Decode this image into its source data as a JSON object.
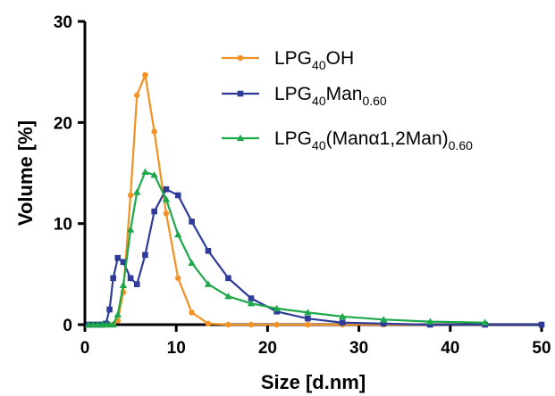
{
  "chart_data": {
    "type": "line",
    "title": "",
    "xlabel": "Size [d.nm]",
    "ylabel": "Volume [%]",
    "xlim": [
      0,
      50
    ],
    "ylim": [
      0,
      30
    ],
    "x_ticks": [
      0,
      10,
      20,
      30,
      40,
      50
    ],
    "y_ticks": [
      0,
      10,
      20,
      30
    ],
    "x_tick_labels": [
      "0",
      "10",
      "20",
      "30",
      "40",
      "50"
    ],
    "y_tick_labels": [
      "0",
      "10",
      "20",
      "30"
    ],
    "grid": false,
    "legend_position": "top-right",
    "series": [
      {
        "name": "LPG40OH",
        "legend_parts": [
          {
            "text": "LPG",
            "sub": false
          },
          {
            "text": "40",
            "sub": true
          },
          {
            "text": "OH",
            "sub": false
          }
        ],
        "color": "#F39223",
        "marker": "circle",
        "points": [
          [
            0.4,
            0
          ],
          [
            0.9,
            0
          ],
          [
            1.4,
            0
          ],
          [
            1.9,
            0
          ],
          [
            2.3,
            0
          ],
          [
            2.7,
            0
          ],
          [
            3.1,
            0
          ],
          [
            3.6,
            0.4
          ],
          [
            4.2,
            3.2
          ],
          [
            5.0,
            12.8
          ],
          [
            5.7,
            22.7
          ],
          [
            6.6,
            24.7
          ],
          [
            7.6,
            19.1
          ],
          [
            8.9,
            11.0
          ],
          [
            10.2,
            4.6
          ],
          [
            11.7,
            1.2
          ],
          [
            13.5,
            0.1
          ],
          [
            15.7,
            0
          ],
          [
            18.2,
            0
          ],
          [
            21.0,
            0
          ],
          [
            24.4,
            0
          ],
          [
            28.2,
            0
          ],
          [
            32.7,
            0
          ],
          [
            37.8,
            0
          ],
          [
            43.8,
            0
          ]
        ]
      },
      {
        "name": "LPG40Man0.60",
        "legend_parts": [
          {
            "text": "LPG",
            "sub": false
          },
          {
            "text": "40",
            "sub": true
          },
          {
            "text": "Man",
            "sub": false
          },
          {
            "text": "0.60",
            "sub": true
          }
        ],
        "color": "#2E3B98",
        "marker": "square",
        "points": [
          [
            0.4,
            0
          ],
          [
            0.9,
            0
          ],
          [
            1.4,
            0
          ],
          [
            1.9,
            0
          ],
          [
            2.3,
            0.1
          ],
          [
            2.7,
            1.5
          ],
          [
            3.1,
            4.6
          ],
          [
            3.6,
            6.6
          ],
          [
            4.2,
            6.2
          ],
          [
            5.0,
            4.6
          ],
          [
            5.7,
            4.0
          ],
          [
            6.6,
            6.9
          ],
          [
            7.6,
            11.2
          ],
          [
            8.9,
            13.4
          ],
          [
            10.2,
            12.8
          ],
          [
            11.7,
            10.2
          ],
          [
            13.5,
            7.3
          ],
          [
            15.7,
            4.6
          ],
          [
            18.2,
            2.6
          ],
          [
            21.0,
            1.3
          ],
          [
            24.4,
            0.6
          ],
          [
            28.2,
            0.2
          ],
          [
            32.7,
            0.1
          ],
          [
            37.8,
            0
          ],
          [
            43.8,
            0
          ],
          [
            50.0,
            0
          ]
        ]
      },
      {
        "name": "LPG40(Manα1,2Man)0.60",
        "legend_parts": [
          {
            "text": "LPG",
            "sub": false
          },
          {
            "text": "40",
            "sub": true
          },
          {
            "text": "(Manα1,2Man)",
            "sub": false
          },
          {
            "text": "0.60",
            "sub": true
          }
        ],
        "color": "#1DA84A",
        "marker": "triangle",
        "points": [
          [
            0.4,
            0
          ],
          [
            0.9,
            0
          ],
          [
            1.4,
            0
          ],
          [
            1.9,
            0
          ],
          [
            2.3,
            0
          ],
          [
            2.7,
            0
          ],
          [
            3.1,
            0
          ],
          [
            3.6,
            1.0
          ],
          [
            4.2,
            3.9
          ],
          [
            5.0,
            9.4
          ],
          [
            5.7,
            13.1
          ],
          [
            6.6,
            15.1
          ],
          [
            7.6,
            14.8
          ],
          [
            8.9,
            12.4
          ],
          [
            10.2,
            8.9
          ],
          [
            11.7,
            6.1
          ],
          [
            13.5,
            4.0
          ],
          [
            15.7,
            2.8
          ],
          [
            18.2,
            2.1
          ],
          [
            21.0,
            1.6
          ],
          [
            24.4,
            1.2
          ],
          [
            28.2,
            0.8
          ],
          [
            32.7,
            0.5
          ],
          [
            37.8,
            0.3
          ],
          [
            43.8,
            0.2
          ]
        ]
      }
    ]
  }
}
